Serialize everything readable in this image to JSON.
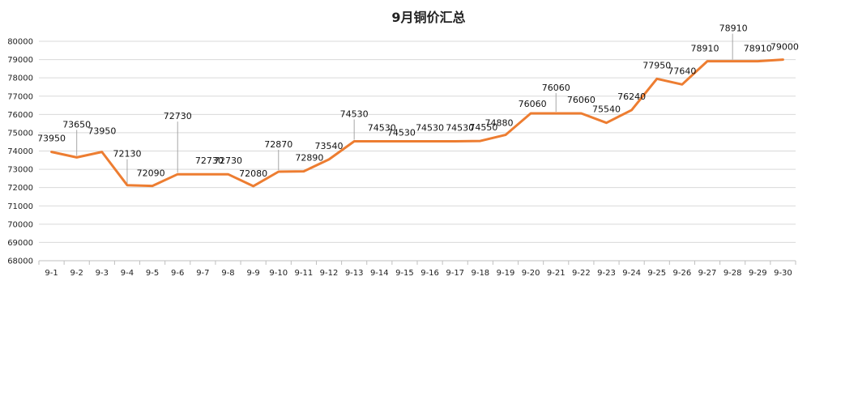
{
  "chart_data": {
    "type": "line",
    "title": "9月铜价汇总",
    "xlabel": "",
    "ylabel": "",
    "categories": [
      "9-1",
      "9-2",
      "9-3",
      "9-4",
      "9-5",
      "9-6",
      "9-7",
      "9-8",
      "9-9",
      "9-10",
      "9-11",
      "9-12",
      "9-13",
      "9-14",
      "9-15",
      "9-16",
      "9-17",
      "9-18",
      "9-19",
      "9-20",
      "9-21",
      "9-22",
      "9-23",
      "9-24",
      "9-25",
      "9-26",
      "9-27",
      "9-28",
      "9-29",
      "9-30"
    ],
    "series": [
      {
        "values": [
          73950,
          73650,
          73950,
          72130,
          72090,
          72730,
          72730,
          72730,
          72080,
          72870,
          72890,
          73540,
          74530,
          74530,
          74530,
          74530,
          74530,
          74550,
          74880,
          76060,
          76060,
          76060,
          75540,
          76240,
          77950,
          77640,
          78910,
          78910,
          78910,
          79000
        ],
        "color": "#ED7D31"
      }
    ],
    "ylim": [
      68000,
      80000
    ],
    "yticks": [
      68000,
      69000,
      70000,
      71000,
      72000,
      73000,
      74000,
      75000,
      76000,
      77000,
      78000,
      79000,
      80000
    ],
    "grid": true,
    "legend": "none"
  }
}
